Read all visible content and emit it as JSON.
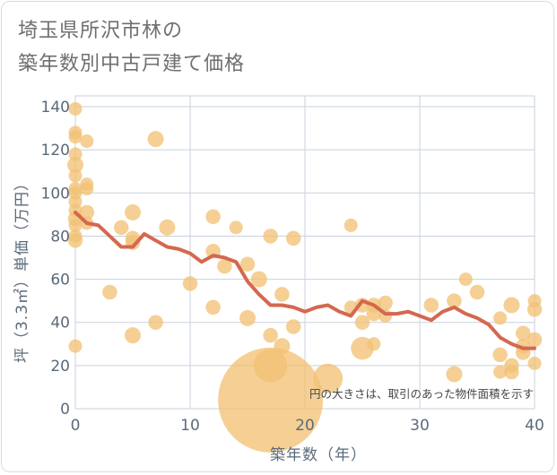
{
  "title_lines": [
    "埼玉県所沢市林の",
    "築年数別中古戸建て価格"
  ],
  "chart_data": {
    "type": "scatter",
    "xlabel": "築年数（年）",
    "ylabel": "坪（3.3㎡）単価（万円）",
    "xlim": [
      0,
      40
    ],
    "ylim": [
      0,
      145
    ],
    "xticks": [
      0,
      10,
      20,
      30,
      40
    ],
    "yticks": [
      0,
      20,
      40,
      60,
      80,
      100,
      120,
      140
    ],
    "grid": true,
    "note": "円の大きさは、取引のあった物件面積を示す",
    "colors": {
      "bubble": "#f2c276",
      "line": "#d4684f",
      "grid": "#c8d2dc"
    },
    "points": [
      {
        "x": 0,
        "y": 139,
        "s": 1
      },
      {
        "x": 0,
        "y": 128,
        "s": 1
      },
      {
        "x": 0,
        "y": 126,
        "s": 1
      },
      {
        "x": 0,
        "y": 118,
        "s": 1
      },
      {
        "x": 0,
        "y": 113,
        "s": 1.2
      },
      {
        "x": 0,
        "y": 108,
        "s": 1
      },
      {
        "x": 0,
        "y": 102,
        "s": 1
      },
      {
        "x": 0,
        "y": 100,
        "s": 1
      },
      {
        "x": 0,
        "y": 96,
        "s": 1
      },
      {
        "x": 0,
        "y": 92,
        "s": 1
      },
      {
        "x": 0,
        "y": 88,
        "s": 1.1
      },
      {
        "x": 0,
        "y": 85,
        "s": 1
      },
      {
        "x": 0,
        "y": 80,
        "s": 1
      },
      {
        "x": 0,
        "y": 78,
        "s": 1.1
      },
      {
        "x": 0,
        "y": 29,
        "s": 1
      },
      {
        "x": 1,
        "y": 124,
        "s": 1
      },
      {
        "x": 1,
        "y": 104,
        "s": 1
      },
      {
        "x": 1,
        "y": 102,
        "s": 1
      },
      {
        "x": 1,
        "y": 91,
        "s": 1.1
      },
      {
        "x": 1,
        "y": 86,
        "s": 1
      },
      {
        "x": 3,
        "y": 54,
        "s": 1.1
      },
      {
        "x": 4,
        "y": 84,
        "s": 1.1
      },
      {
        "x": 5,
        "y": 91,
        "s": 1.2
      },
      {
        "x": 5,
        "y": 79,
        "s": 1.1
      },
      {
        "x": 5,
        "y": 77,
        "s": 1.1
      },
      {
        "x": 5,
        "y": 34,
        "s": 1.2
      },
      {
        "x": 7,
        "y": 125,
        "s": 1.2
      },
      {
        "x": 7,
        "y": 40,
        "s": 1.1
      },
      {
        "x": 8,
        "y": 84,
        "s": 1.2
      },
      {
        "x": 10,
        "y": 58,
        "s": 1.1
      },
      {
        "x": 12,
        "y": 89,
        "s": 1.1
      },
      {
        "x": 12,
        "y": 73,
        "s": 1.1
      },
      {
        "x": 12,
        "y": 47,
        "s": 1.1
      },
      {
        "x": 13,
        "y": 66,
        "s": 1.1
      },
      {
        "x": 14,
        "y": 84,
        "s": 1
      },
      {
        "x": 15,
        "y": 67,
        "s": 1.1
      },
      {
        "x": 15,
        "y": 42,
        "s": 1.2
      },
      {
        "x": 16,
        "y": 60,
        "s": 1.2
      },
      {
        "x": 17,
        "y": 80,
        "s": 1.1
      },
      {
        "x": 17,
        "y": 34,
        "s": 1.1
      },
      {
        "x": 17,
        "y": 20,
        "s": 2.5
      },
      {
        "x": 17,
        "y": 4,
        "s": 7.8
      },
      {
        "x": 18,
        "y": 53,
        "s": 1.1
      },
      {
        "x": 18,
        "y": 29,
        "s": 1.2
      },
      {
        "x": 19,
        "y": 79,
        "s": 1.1
      },
      {
        "x": 19,
        "y": 38,
        "s": 1.1
      },
      {
        "x": 22,
        "y": 14,
        "s": 2.2
      },
      {
        "x": 24,
        "y": 85,
        "s": 1
      },
      {
        "x": 24,
        "y": 47,
        "s": 1
      },
      {
        "x": 25,
        "y": 48,
        "s": 1.1
      },
      {
        "x": 25,
        "y": 40,
        "s": 1.1
      },
      {
        "x": 25,
        "y": 28,
        "s": 1.7
      },
      {
        "x": 26,
        "y": 48,
        "s": 1.1
      },
      {
        "x": 26,
        "y": 44,
        "s": 1.1
      },
      {
        "x": 26,
        "y": 30,
        "s": 1
      },
      {
        "x": 27,
        "y": 49,
        "s": 1.1
      },
      {
        "x": 27,
        "y": 43,
        "s": 1
      },
      {
        "x": 31,
        "y": 48,
        "s": 1.1
      },
      {
        "x": 33,
        "y": 50,
        "s": 1.1
      },
      {
        "x": 33,
        "y": 16,
        "s": 1.2
      },
      {
        "x": 34,
        "y": 60,
        "s": 1
      },
      {
        "x": 35,
        "y": 54,
        "s": 1.1
      },
      {
        "x": 37,
        "y": 42,
        "s": 1
      },
      {
        "x": 37,
        "y": 25,
        "s": 1.1
      },
      {
        "x": 37,
        "y": 17,
        "s": 1
      },
      {
        "x": 38,
        "y": 48,
        "s": 1.2
      },
      {
        "x": 38,
        "y": 20,
        "s": 1.1
      },
      {
        "x": 38,
        "y": 17,
        "s": 1.1
      },
      {
        "x": 39,
        "y": 35,
        "s": 1.1
      },
      {
        "x": 39,
        "y": 29,
        "s": 1.1
      },
      {
        "x": 39,
        "y": 26,
        "s": 1.1
      },
      {
        "x": 40,
        "y": 50,
        "s": 1
      },
      {
        "x": 40,
        "y": 46,
        "s": 1.1
      },
      {
        "x": 40,
        "y": 32,
        "s": 1.1
      },
      {
        "x": 40,
        "y": 21,
        "s": 1
      }
    ],
    "trend": {
      "x": [
        0,
        1,
        2,
        3,
        4,
        5,
        6,
        7,
        8,
        9,
        10,
        11,
        12,
        13,
        14,
        15,
        16,
        17,
        18,
        19,
        20,
        21,
        22,
        23,
        24,
        25,
        26,
        27,
        28,
        29,
        30,
        31,
        32,
        33,
        34,
        35,
        36,
        37,
        38,
        39,
        40
      ],
      "y": [
        91,
        86,
        85,
        80,
        75,
        75,
        81,
        78,
        75,
        74,
        72,
        68,
        71,
        70,
        68,
        59,
        53,
        48,
        48,
        47,
        45,
        47,
        48,
        45,
        43,
        50,
        48,
        44,
        44,
        45,
        43,
        41,
        45,
        47,
        44,
        42,
        39,
        33,
        30,
        28,
        28
      ]
    }
  }
}
